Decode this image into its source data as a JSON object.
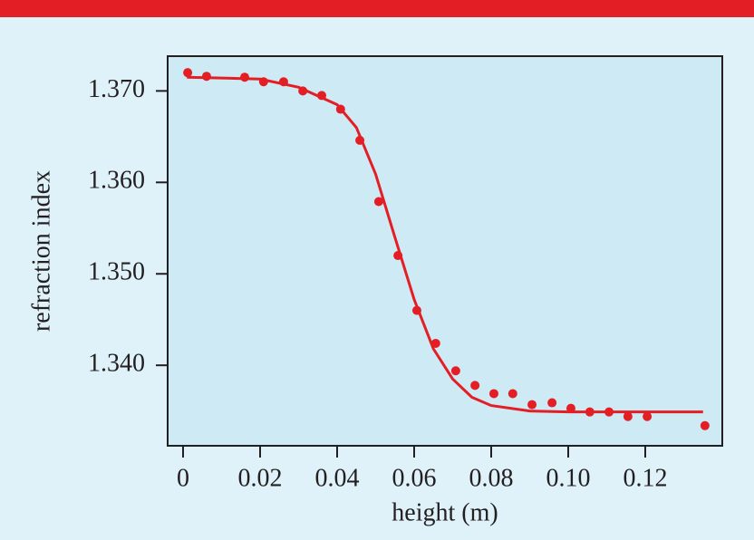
{
  "chart_data": {
    "type": "scatter",
    "x_label": "height (m)",
    "y_label": "refraction index",
    "color": "#e31e24",
    "series": [
      {
        "x": [
          0.0012,
          0.0061,
          0.016,
          0.0209,
          0.0261,
          0.0311,
          0.036,
          0.0409,
          0.0459,
          0.0508,
          0.0558,
          0.0607,
          0.0656,
          0.0708,
          0.0758,
          0.0807,
          0.0856,
          0.0906,
          0.0958,
          0.1007,
          0.1056,
          0.1106,
          0.1155,
          0.1205,
          0.1355
        ],
        "values": [
          1.372,
          1.3716,
          1.3715,
          1.371,
          1.371,
          1.37,
          1.3695,
          1.368,
          1.3646,
          1.3579,
          1.352,
          1.346,
          1.3424,
          1.3394,
          1.3378,
          1.3369,
          1.3369,
          1.3357,
          1.3359,
          1.3353,
          1.3349,
          1.3349,
          1.3344,
          1.3344,
          1.3334
        ]
      },
      {
        "type": "line",
        "x": [
          0.001,
          0.02,
          0.03,
          0.04,
          0.045,
          0.05,
          0.055,
          0.06,
          0.065,
          0.07,
          0.075,
          0.08,
          0.09,
          0.1,
          0.135
        ],
        "values": [
          1.3715,
          1.3713,
          1.3704,
          1.3685,
          1.366,
          1.3609,
          1.354,
          1.3472,
          1.3418,
          1.3385,
          1.3365,
          1.3356,
          1.335,
          1.3349,
          1.3349
        ]
      }
    ],
    "xlim": [
      -0.004,
      0.14
    ],
    "ylim": [
      1.3312,
      1.3738
    ],
    "xticks": [
      0,
      0.02,
      0.04,
      0.06,
      0.08,
      {
        "value": 0.1,
        "label": "0.10"
      },
      0.12
    ],
    "yticks": [
      {
        "value": 1.34,
        "label": "1.340"
      },
      {
        "value": 1.35,
        "label": "1.350"
      },
      {
        "value": 1.36,
        "label": "1.360"
      },
      {
        "value": 1.37,
        "label": "1.370"
      }
    ]
  }
}
